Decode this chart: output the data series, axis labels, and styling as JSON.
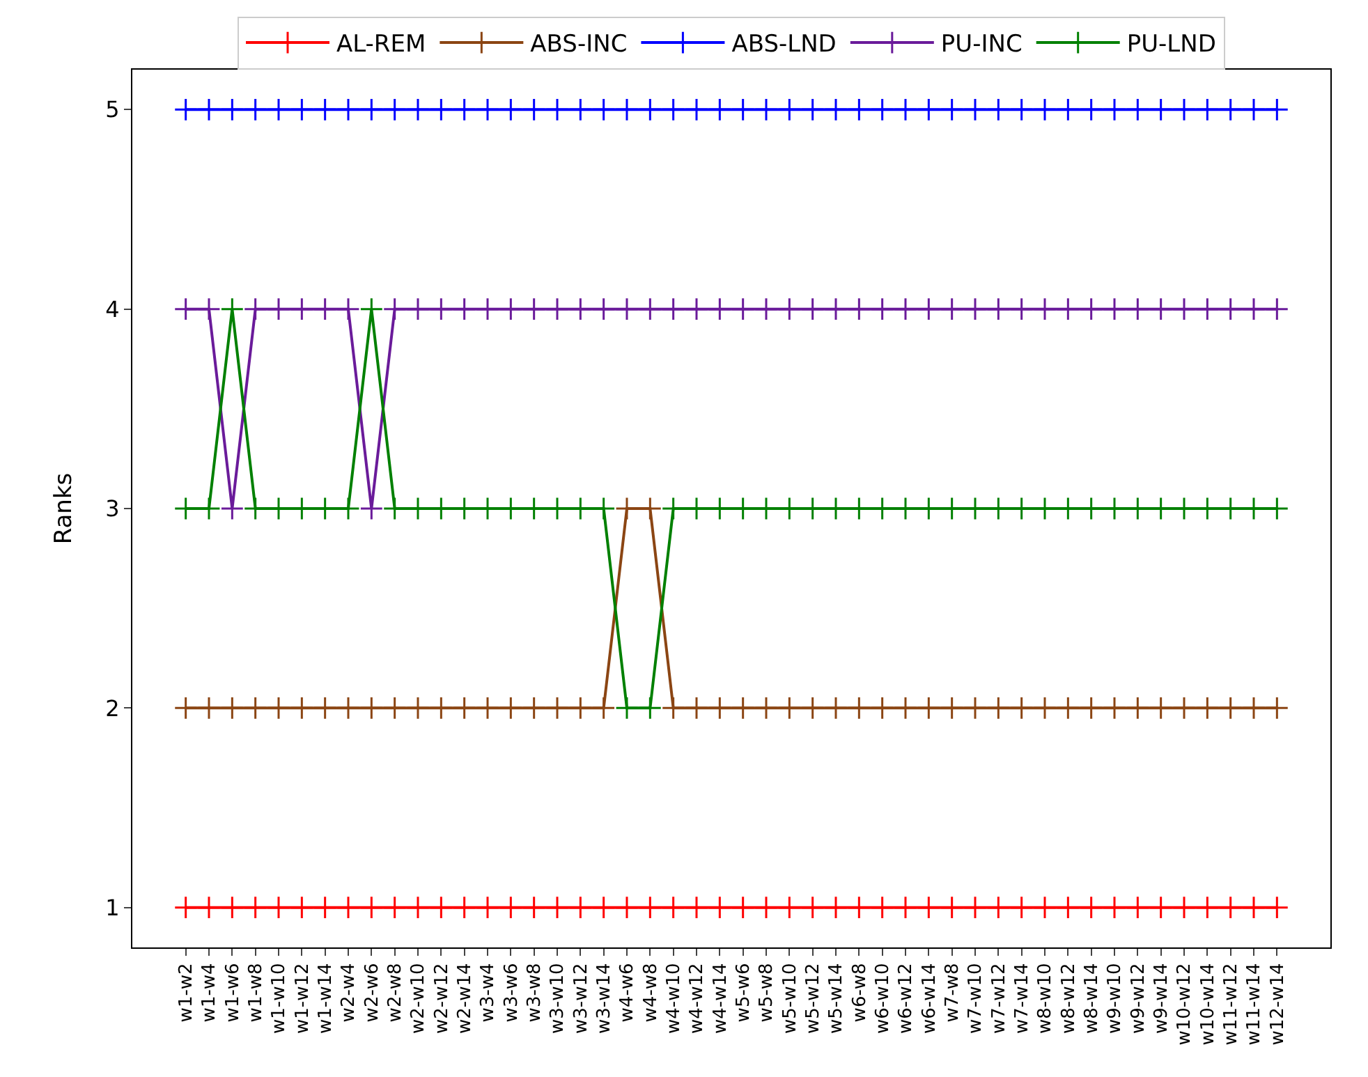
{
  "chart_data": {
    "type": "line",
    "ylabel": "Ranks",
    "categories": [
      "w1-w2",
      "w1-w4",
      "w1-w6",
      "w1-w8",
      "w1-w10",
      "w1-w12",
      "w1-w14",
      "w2-w4",
      "w2-w6",
      "w2-w8",
      "w2-w10",
      "w2-w12",
      "w2-w14",
      "w3-w4",
      "w3-w6",
      "w3-w8",
      "w3-w10",
      "w3-w12",
      "w3-w14",
      "w4-w6",
      "w4-w8",
      "w4-w10",
      "w4-w12",
      "w4-w14",
      "w5-w6",
      "w5-w8",
      "w5-w10",
      "w5-w12",
      "w5-w14",
      "w6-w8",
      "w6-w10",
      "w6-w12",
      "w6-w14",
      "w7-w8",
      "w7-w10",
      "w7-w12",
      "w7-w14",
      "w8-w10",
      "w8-w12",
      "w8-w14",
      "w9-w10",
      "w9-w12",
      "w9-w14",
      "w10-w12",
      "w10-w14",
      "w11-w12",
      "w11-w14",
      "w12-w14"
    ],
    "series": [
      {
        "name": "AL-REM",
        "color": "#ff0000",
        "values": [
          1,
          1,
          1,
          1,
          1,
          1,
          1,
          1,
          1,
          1,
          1,
          1,
          1,
          1,
          1,
          1,
          1,
          1,
          1,
          1,
          1,
          1,
          1,
          1,
          1,
          1,
          1,
          1,
          1,
          1,
          1,
          1,
          1,
          1,
          1,
          1,
          1,
          1,
          1,
          1,
          1,
          1,
          1,
          1,
          1,
          1,
          1,
          1
        ]
      },
      {
        "name": "ABS-INC",
        "color": "#8b4513",
        "values": [
          2,
          2,
          2,
          2,
          2,
          2,
          2,
          2,
          2,
          2,
          2,
          2,
          2,
          2,
          2,
          2,
          2,
          2,
          2,
          3,
          3,
          2,
          2,
          2,
          2,
          2,
          2,
          2,
          2,
          2,
          2,
          2,
          2,
          2,
          2,
          2,
          2,
          2,
          2,
          2,
          2,
          2,
          2,
          2,
          2,
          2,
          2,
          2
        ]
      },
      {
        "name": "ABS-LND",
        "color": "#0000ff",
        "values": [
          5,
          5,
          5,
          5,
          5,
          5,
          5,
          5,
          5,
          5,
          5,
          5,
          5,
          5,
          5,
          5,
          5,
          5,
          5,
          5,
          5,
          5,
          5,
          5,
          5,
          5,
          5,
          5,
          5,
          5,
          5,
          5,
          5,
          5,
          5,
          5,
          5,
          5,
          5,
          5,
          5,
          5,
          5,
          5,
          5,
          5,
          5,
          5
        ]
      },
      {
        "name": "PU-INC",
        "color": "#6a1b9a",
        "values": [
          4,
          4,
          3,
          4,
          4,
          4,
          4,
          4,
          3,
          4,
          4,
          4,
          4,
          4,
          4,
          4,
          4,
          4,
          4,
          4,
          4,
          4,
          4,
          4,
          4,
          4,
          4,
          4,
          4,
          4,
          4,
          4,
          4,
          4,
          4,
          4,
          4,
          4,
          4,
          4,
          4,
          4,
          4,
          4,
          4,
          4,
          4,
          4
        ]
      },
      {
        "name": "PU-LND",
        "color": "#008000",
        "values": [
          3,
          3,
          4,
          3,
          3,
          3,
          3,
          3,
          4,
          3,
          3,
          3,
          3,
          3,
          3,
          3,
          3,
          3,
          3,
          2,
          2,
          3,
          3,
          3,
          3,
          3,
          3,
          3,
          3,
          3,
          3,
          3,
          3,
          3,
          3,
          3,
          3,
          3,
          3,
          3,
          3,
          3,
          3,
          3,
          3,
          3,
          3,
          3
        ]
      }
    ],
    "ylim": [
      0.8,
      5.2
    ],
    "yticks": [
      1,
      2,
      3,
      4,
      5
    ],
    "grid": false,
    "legend": "top",
    "marker": "cross",
    "line_style": "solid"
  }
}
